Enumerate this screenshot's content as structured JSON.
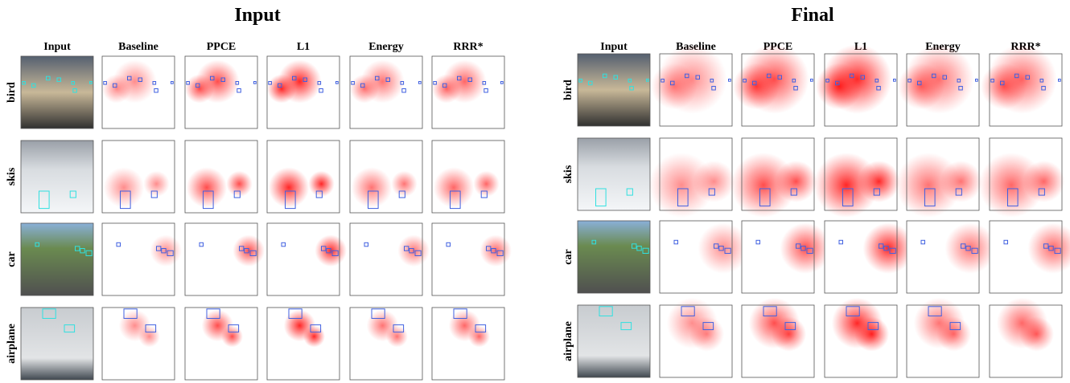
{
  "panels": [
    {
      "title": "Input",
      "columns": [
        "Input",
        "Baseline",
        "PPCE",
        "L1",
        "Energy",
        "RRR*"
      ],
      "rows": [
        "bird",
        "skis",
        "car",
        "airplane"
      ]
    },
    {
      "title": "Final",
      "columns": [
        "Input",
        "Baseline",
        "PPCE",
        "L1",
        "Energy",
        "RRR*"
      ],
      "rows": [
        "bird",
        "skis",
        "car",
        "airplane"
      ]
    }
  ]
}
